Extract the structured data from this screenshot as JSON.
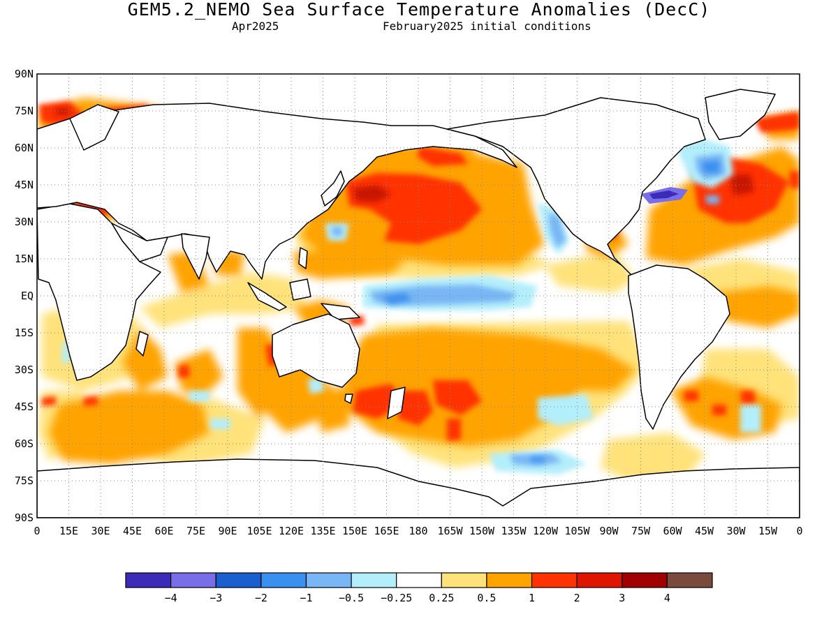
{
  "header": {
    "title": "GEM5.2_NEMO Sea Surface Temperature Anomalies (DecC)",
    "subtitle_left": "Apr2025",
    "subtitle_right": "February2025 initial conditions"
  },
  "map": {
    "projection": "equirectangular",
    "lon_range": [
      0,
      360
    ],
    "lat_range": [
      -90,
      90
    ],
    "lat_ticks": [
      "90N",
      "75N",
      "60N",
      "45N",
      "30N",
      "15N",
      "EQ",
      "15S",
      "30S",
      "45S",
      "60S",
      "75S",
      "90S"
    ],
    "lon_ticks": [
      "0",
      "15E",
      "30E",
      "45E",
      "60E",
      "75E",
      "90E",
      "105E",
      "120E",
      "135E",
      "150E",
      "165E",
      "180",
      "165W",
      "150W",
      "135W",
      "120W",
      "105W",
      "90W",
      "75W",
      "60W",
      "45W",
      "30W",
      "15W",
      "0"
    ],
    "grid": "dotted",
    "coastline_color": "#000000"
  },
  "colorbar": {
    "colors": [
      "#3b2bb8",
      "#7a6ee8",
      "#1a5fd0",
      "#3a90f0",
      "#78b6f5",
      "#b3eefb",
      "#ffffff",
      "#ffe27a",
      "#ffa300",
      "#ff3300",
      "#e01500",
      "#a00000",
      "#7a4a3c"
    ],
    "labels": [
      "−4",
      "−3",
      "−2",
      "−1",
      "−0.5",
      "−0.25",
      "0.25",
      "0.5",
      "1",
      "2",
      "3",
      "4"
    ]
  }
}
